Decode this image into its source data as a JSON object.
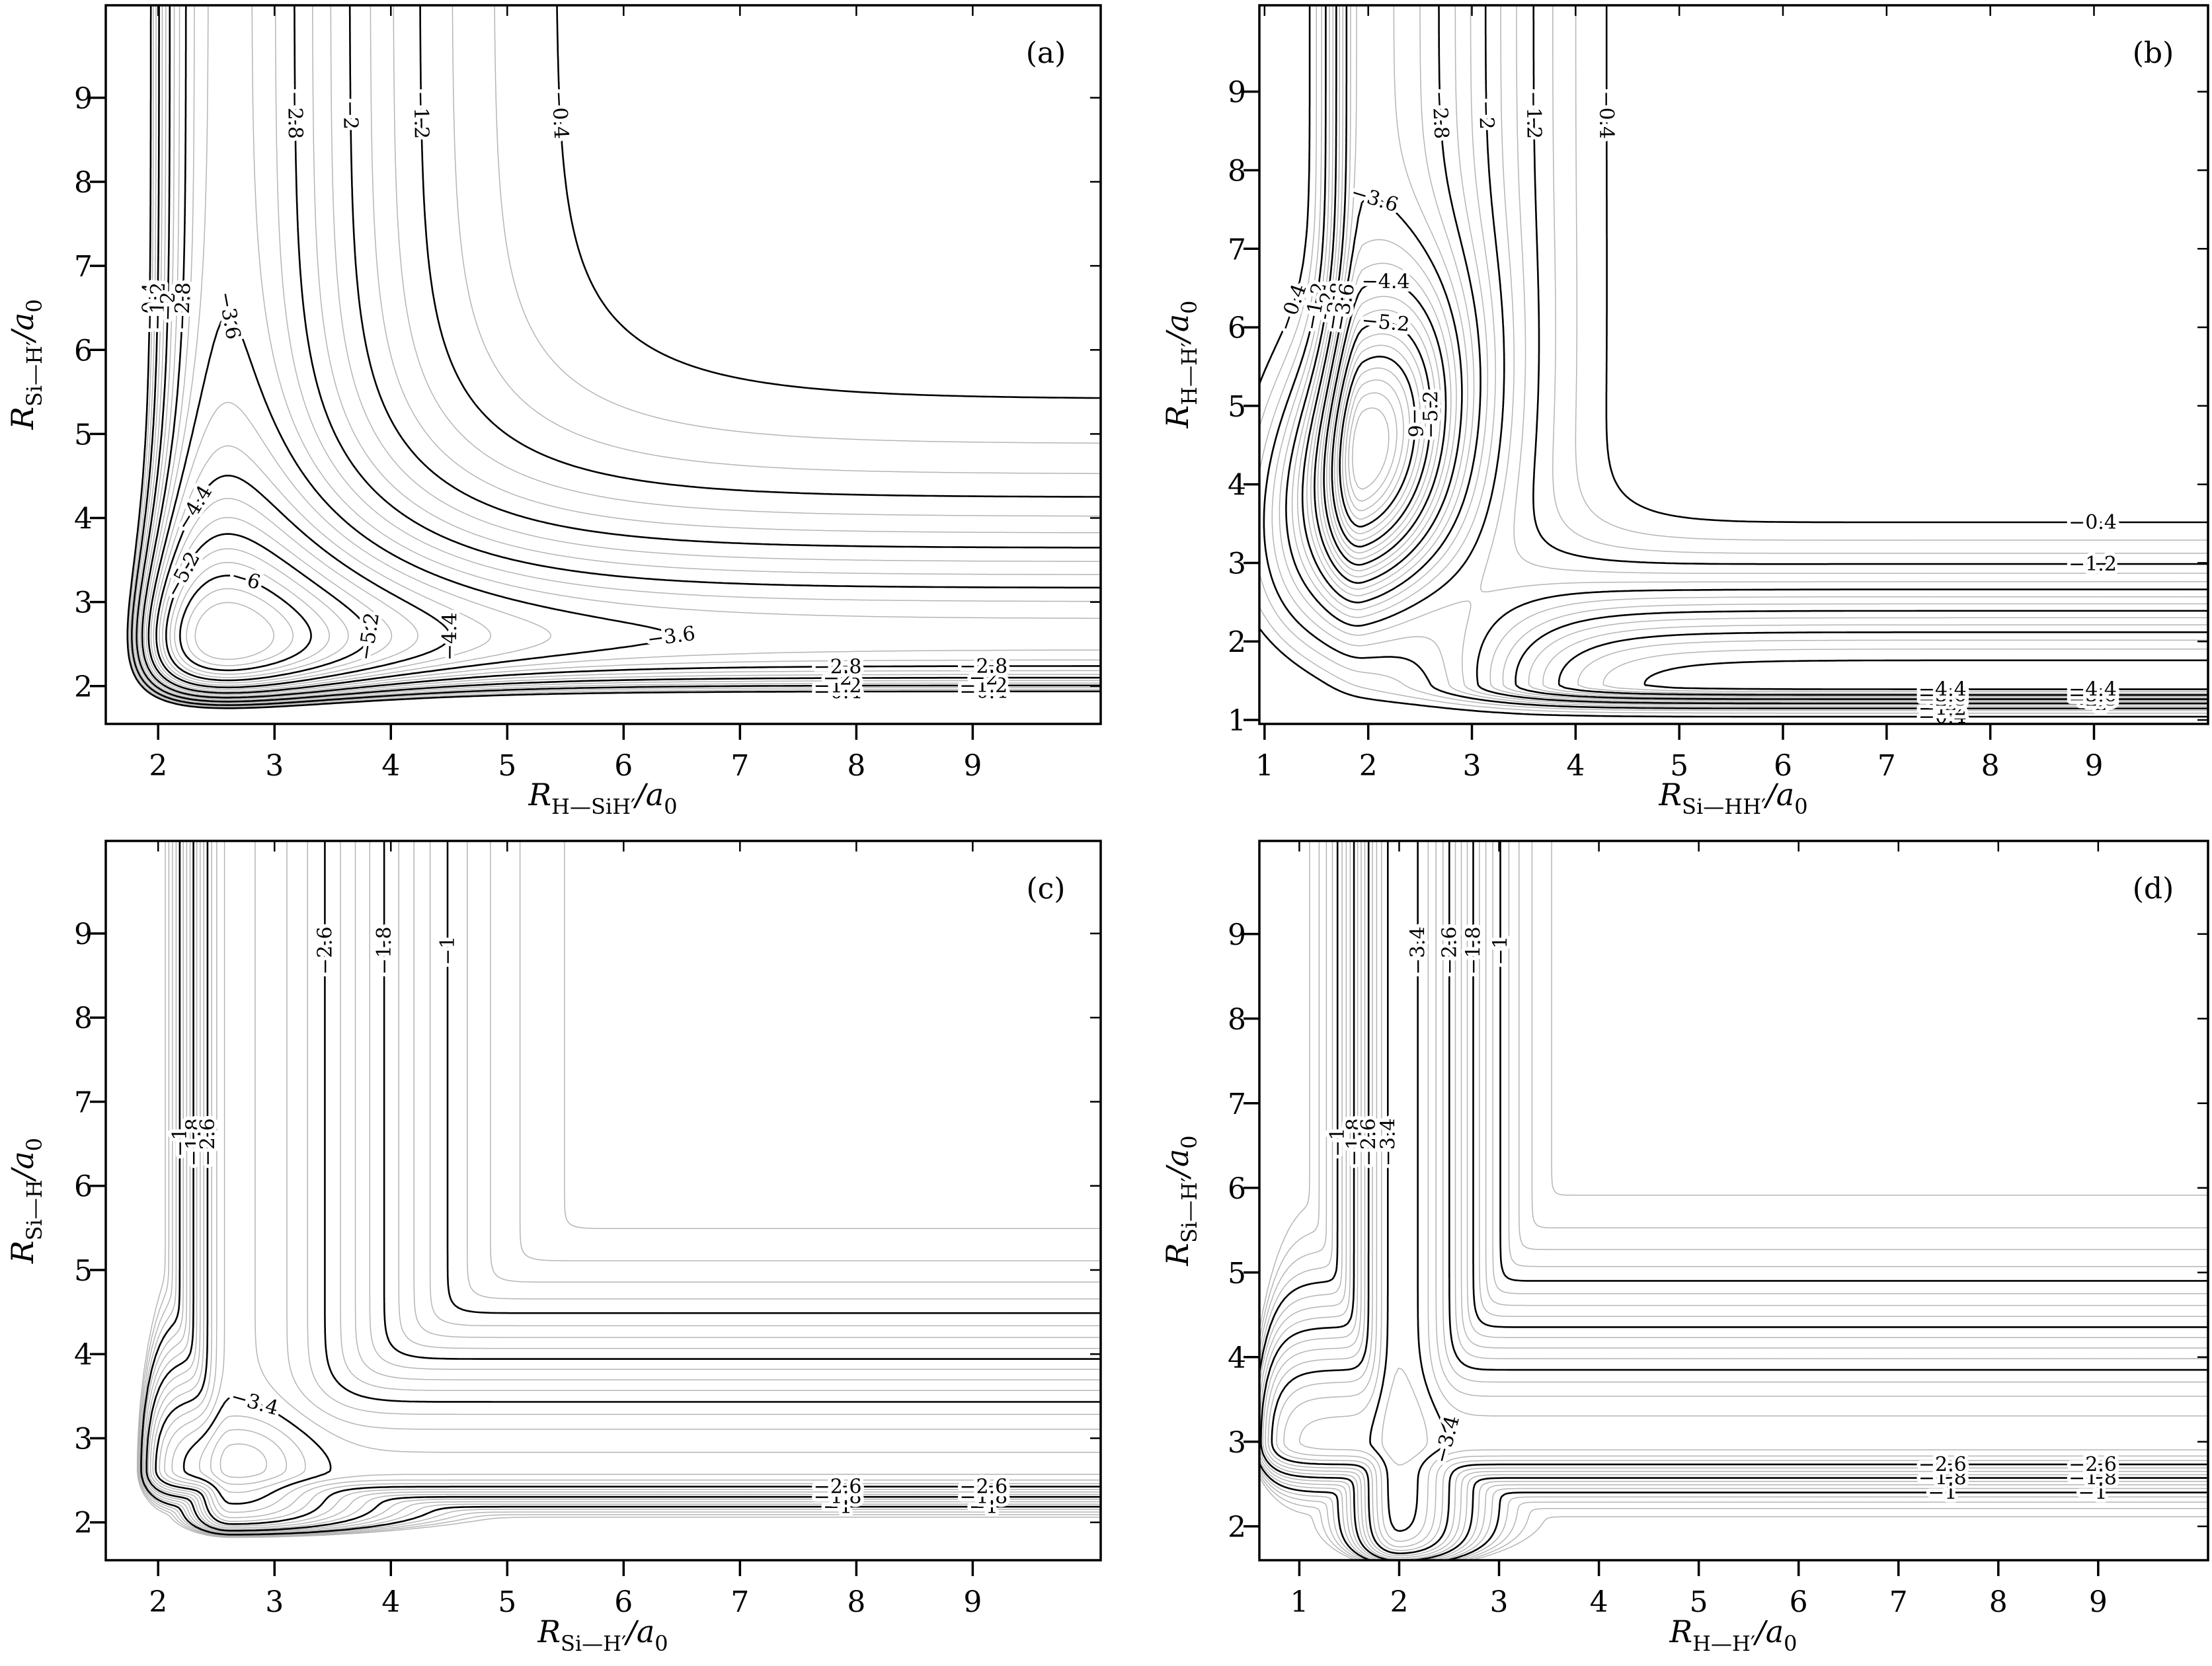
{
  "styles": {
    "background": "#ffffff",
    "contour_black": "#000000",
    "contour_gray": "#b5b5b5",
    "frame": "#000000"
  },
  "chart_data": [
    {
      "id": "a",
      "tag": "(a)",
      "type": "contour",
      "xlabel": {
        "base": "R",
        "sub": "H—SiH′",
        "denom": "/a",
        "denom_sub": "0"
      },
      "ylabel": {
        "base": "R",
        "sub": "Si—H′",
        "denom": "/a",
        "denom_sub": "0"
      },
      "xticks": [
        2,
        3,
        4,
        5,
        6,
        7,
        8,
        9
      ],
      "yticks": [
        2,
        3,
        4,
        5,
        6,
        7,
        8,
        9
      ],
      "xrange": [
        1.55,
        10.1
      ],
      "yrange": [
        1.55,
        10.1
      ],
      "labeled_levels": [
        -0.4,
        -1.2,
        -2,
        -2.8,
        -3.6,
        -4.4,
        -5.2,
        -6
      ],
      "level_start": -0.4,
      "level_step": 0.266667,
      "minimum": {
        "x": 2.9,
        "y": 2.9
      },
      "surface": {
        "kind": "morse_sum",
        "D": 3.45,
        "a": 1.0,
        "re": 2.6
      }
    },
    {
      "id": "b",
      "tag": "(b)",
      "type": "contour",
      "xlabel": {
        "base": "R",
        "sub": "Si—HH′",
        "denom": "/a",
        "denom_sub": "0"
      },
      "ylabel": {
        "base": "R",
        "sub": "H—H′",
        "denom": "/a",
        "denom_sub": "0"
      },
      "xticks": [
        1,
        2,
        3,
        4,
        5,
        6,
        7,
        8,
        9
      ],
      "yticks": [
        1,
        2,
        3,
        4,
        5,
        6,
        7,
        8,
        9
      ],
      "xrange": [
        0.95,
        10.1
      ],
      "yrange": [
        0.95,
        10.1
      ],
      "labeled_levels": [
        -0.4,
        -1.2,
        -2,
        -2.8,
        -3.6,
        -4.4,
        -5.2,
        -6
      ],
      "level_start": -0.4,
      "level_step": 0.266667,
      "minimum": {
        "x": 2.0,
        "y": 4.3
      },
      "surface": {
        "kind": "well_channels",
        "vx": {
          "D": 3.45,
          "x0": 1.95,
          "wl": 0.35,
          "wr": 1.6,
          "sw": 2.9,
          "ss": 0.5
        },
        "vy": {
          "D": 4.65,
          "x0": 1.45,
          "wl": 0.26,
          "wr": 1.32,
          "sw": 3.25,
          "ss": 0.5
        },
        "well": {
          "A": 4.15,
          "x0": 1.95,
          "tilt": 0.16,
          "wx": 0.8,
          "y0": 4.3,
          "wy": 1.95
        },
        "wall": {
          "A": 900,
          "k": 2.6
        }
      }
    },
    {
      "id": "c",
      "tag": "(c)",
      "type": "contour",
      "xlabel": {
        "base": "R",
        "sub": "Si—H′",
        "denom": "/a",
        "denom_sub": "0"
      },
      "ylabel": {
        "base": "R",
        "sub": "Si—H",
        "denom": "/a",
        "denom_sub": "0"
      },
      "xticks": [
        2,
        3,
        4,
        5,
        6,
        7,
        8,
        9
      ],
      "yticks": [
        2,
        3,
        4,
        5,
        6,
        7,
        8,
        9
      ],
      "xrange": [
        1.55,
        10.1
      ],
      "yrange": [
        1.55,
        10.1
      ],
      "labeled_levels": [
        -1,
        -1.8,
        -2.6,
        -3.4
      ],
      "level_start": -0.2,
      "level_step": 0.2,
      "minimum": {
        "x": 2.72,
        "y": 2.72
      },
      "surface": {
        "kind": "softmin_channels",
        "vx": {
          "D": 3.25,
          "x0": 2.62,
          "wl": 0.42,
          "wr": 1.72
        },
        "vy": {
          "D": 3.25,
          "x0": 2.62,
          "wl": 0.42,
          "wr": 1.72
        },
        "p": 7,
        "well": {
          "A": 0.55,
          "x0": 2.72,
          "y0": 2.72,
          "w2": 0.3
        },
        "wallx": {
          "A": 55,
          "k": 9,
          "r0": 1.5
        },
        "wally": {
          "A": 55,
          "k": 9,
          "r0": 1.5
        }
      }
    },
    {
      "id": "d",
      "tag": "(d)",
      "type": "contour",
      "xlabel": {
        "base": "R",
        "sub": "H—H′",
        "denom": "/a",
        "denom_sub": "0"
      },
      "ylabel": {
        "base": "R",
        "sub": "Si—H′",
        "denom": "/a",
        "denom_sub": "0"
      },
      "xticks": [
        1,
        2,
        3,
        4,
        5,
        6,
        7,
        8,
        9
      ],
      "yticks": [
        2,
        3,
        4,
        5,
        6,
        7,
        8,
        9
      ],
      "xrange": [
        0.6,
        10.1
      ],
      "yrange": [
        1.6,
        10.1
      ],
      "labeled_levels": [
        -1,
        -1.8,
        -2.6,
        -3.4
      ],
      "level_start": -0.2,
      "level_step": 0.2,
      "surface": {
        "kind": "softmin_channels",
        "vx": {
          "D": 3.55,
          "x0": 2.0,
          "wl": 0.55,
          "wr": 0.9
        },
        "vy": {
          "D": 3.3,
          "x0": 3.0,
          "wl": 0.55,
          "wr": 1.74
        },
        "p": 7,
        "well": null,
        "wallx": {
          "A": 55,
          "k": 7,
          "r0": 0.1
        },
        "wally": {
          "A": 55,
          "k": 7,
          "r0": 1.1
        }
      }
    }
  ]
}
